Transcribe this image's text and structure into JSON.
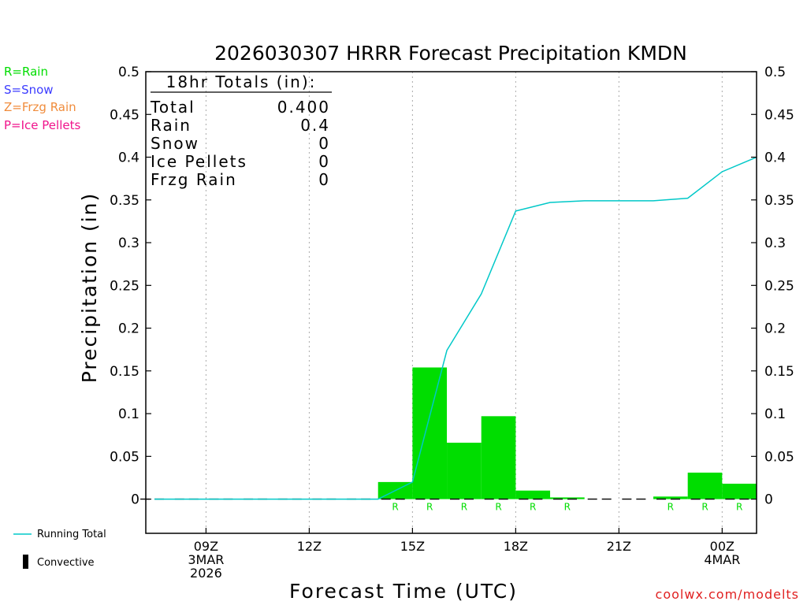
{
  "chart_data": {
    "type": "bar",
    "title": "2026030307 HRRR Forecast Precipitation KMDN",
    "xlabel": "Forecast Time (UTC)",
    "ylabel": "Precipitation (in)",
    "ylim": [
      -0.04,
      0.5
    ],
    "y_ticks": [
      0,
      0.05,
      0.1,
      0.15,
      0.2,
      0.25,
      0.3,
      0.35,
      0.4,
      0.45,
      0.5
    ],
    "y_tick_labels": [
      "0",
      "0.05",
      "0.1",
      "0.15",
      "0.2",
      "0.25",
      "0.3",
      "0.35",
      "0.4",
      "0.45",
      "0.5"
    ],
    "xlim_hours": [
      7.25,
      25
    ],
    "x_ticks": [
      {
        "hour": 9,
        "lines": [
          "09Z",
          "3MAR",
          "2026"
        ]
      },
      {
        "hour": 12,
        "lines": [
          "12Z"
        ]
      },
      {
        "hour": 15,
        "lines": [
          "15Z"
        ]
      },
      {
        "hour": 18,
        "lines": [
          "18Z"
        ]
      },
      {
        "hour": 21,
        "lines": [
          "21Z"
        ]
      },
      {
        "hour": 24,
        "lines": [
          "00Z",
          "4MAR"
        ]
      }
    ],
    "hourly_precip": {
      "name": "Hourly Precipitation",
      "color": "#00dd00",
      "hours": [
        8,
        9,
        10,
        11,
        12,
        13,
        14,
        15,
        16,
        17,
        18,
        19,
        20,
        21,
        22,
        23,
        24,
        25
      ],
      "values": [
        0,
        0,
        0,
        0,
        0,
        0,
        0,
        0.02,
        0.154,
        0.066,
        0.097,
        0.01,
        0.002,
        0,
        0,
        0.003,
        0.031,
        0.018
      ],
      "types": [
        "",
        "",
        "",
        "",
        "",
        "",
        "",
        "R",
        "R",
        "R",
        "R",
        "R",
        "R",
        "",
        "",
        "R",
        "R",
        "R"
      ]
    },
    "running_total": {
      "name": "Running Total",
      "color": "#00c8c8",
      "hours": [
        7.5,
        14,
        15,
        16,
        17,
        18,
        19,
        20,
        21,
        22,
        23,
        24,
        25
      ],
      "values": [
        0,
        0,
        0.02,
        0.174,
        0.24,
        0.337,
        0.347,
        0.349,
        0.349,
        0.349,
        0.352,
        0.383,
        0.4
      ]
    },
    "totals_box": {
      "title": "18hr Totals (in):",
      "rows": [
        {
          "label": "Total",
          "value": "0.400"
        },
        {
          "label": "Rain",
          "value": "0.4"
        },
        {
          "label": "Snow",
          "value": "0"
        },
        {
          "label": "Ice Pellets",
          "value": "0"
        },
        {
          "label": "Frzg Rain",
          "value": "0"
        }
      ]
    },
    "type_legend": [
      {
        "text": "R=Rain",
        "color": "#00dd00"
      },
      {
        "text": "S=Snow",
        "color": "#3c3cff"
      },
      {
        "text": "Z=Frzg Rain",
        "color": "#f08c3c"
      },
      {
        "text": "P=Ice Pellets",
        "color": "#f0148c"
      }
    ],
    "bottom_legend": [
      {
        "text": "Running Total"
      },
      {
        "text": "Convective"
      }
    ],
    "credit": "coolwx.com/modelts"
  }
}
